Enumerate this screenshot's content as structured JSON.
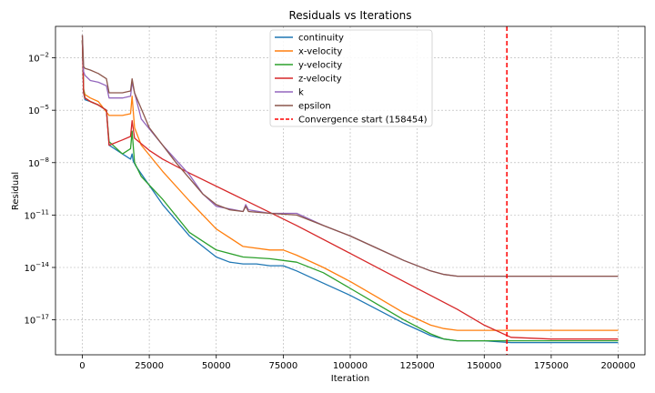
{
  "chart_data": {
    "type": "line",
    "title": "Residuals vs Iterations",
    "xlabel": "Iteration",
    "ylabel": "Residual",
    "xlim": [
      -10000,
      210000
    ],
    "ylog": true,
    "ylim_exp": [
      -19,
      -0.2
    ],
    "grid": true,
    "legend_position": "top-center",
    "x_ticks": [
      0,
      25000,
      50000,
      75000,
      100000,
      125000,
      150000,
      175000,
      200000
    ],
    "x_tick_labels": [
      "0",
      "25000",
      "50000",
      "75000",
      "100000",
      "125000",
      "150000",
      "175000",
      "200000"
    ],
    "y_ticks_exp": [
      -17,
      -14,
      -11,
      -8,
      -5,
      -2
    ],
    "y_tick_labels": [
      "10",
      "10",
      "10",
      "10",
      "10",
      "10"
    ],
    "y_tick_superscripts": [
      "−17",
      "−14",
      "−11",
      "−8",
      "−5",
      "−2"
    ],
    "series": [
      {
        "name": "continuity",
        "color": "#1f77b4",
        "x": [
          0,
          500,
          1000,
          3000,
          6000,
          9000,
          10000,
          15000,
          18000,
          18600,
          19000,
          20000,
          25000,
          30000,
          40000,
          50000,
          55000,
          60000,
          65000,
          70000,
          75000,
          80000,
          90000,
          100000,
          110000,
          120000,
          130000,
          135000,
          140000,
          150000,
          160000,
          175000,
          200000
        ],
        "y_exp": [
          -1.0,
          -4.0,
          -4.4,
          -4.5,
          -4.7,
          -5.0,
          -7.0,
          -7.5,
          -7.8,
          -7.5,
          -7.9,
          -8.2,
          -9.3,
          -10.4,
          -12.2,
          -13.4,
          -13.7,
          -13.8,
          -13.8,
          -13.9,
          -13.9,
          -14.2,
          -14.9,
          -15.6,
          -16.4,
          -17.2,
          -17.9,
          -18.1,
          -18.2,
          -18.2,
          -18.3,
          -18.3,
          -18.3
        ]
      },
      {
        "name": "x-velocity",
        "color": "#ff7f0e",
        "x": [
          0,
          500,
          1000,
          3000,
          6000,
          10000,
          15000,
          18000,
          18600,
          19500,
          22000,
          30000,
          40000,
          50000,
          60000,
          70000,
          75000,
          80000,
          90000,
          100000,
          110000,
          120000,
          130000,
          135000,
          140000,
          150000,
          160000,
          200000
        ],
        "y_exp": [
          -1.0,
          -3.8,
          -4.1,
          -4.3,
          -4.5,
          -5.3,
          -5.3,
          -5.2,
          -4.2,
          -6.0,
          -7.0,
          -8.5,
          -10.2,
          -11.8,
          -12.8,
          -13.0,
          -13.0,
          -13.3,
          -14.0,
          -14.8,
          -15.7,
          -16.6,
          -17.3,
          -17.5,
          -17.6,
          -17.6,
          -17.6,
          -17.6
        ]
      },
      {
        "name": "y-velocity",
        "color": "#2ca02c",
        "x": [
          0,
          500,
          1000,
          3000,
          6000,
          9000,
          10000,
          15000,
          18000,
          18600,
          19500,
          22000,
          30000,
          40000,
          50000,
          60000,
          70000,
          75000,
          80000,
          90000,
          100000,
          110000,
          120000,
          130000,
          135000,
          140000,
          150000,
          160000,
          200000
        ],
        "y_exp": [
          -1.0,
          -3.8,
          -4.3,
          -4.5,
          -4.7,
          -5.0,
          -6.8,
          -7.5,
          -7.2,
          -6.2,
          -8.0,
          -8.8,
          -10.1,
          -12.0,
          -13.0,
          -13.4,
          -13.5,
          -13.6,
          -13.7,
          -14.3,
          -15.2,
          -16.1,
          -17.0,
          -17.8,
          -18.1,
          -18.2,
          -18.2,
          -18.2,
          -18.2
        ]
      },
      {
        "name": "z-velocity",
        "color": "#d62728",
        "x": [
          0,
          500,
          1000,
          3000,
          6000,
          9000,
          10000,
          15000,
          18000,
          18600,
          19500,
          25000,
          30000,
          40000,
          60000,
          80000,
          100000,
          120000,
          140000,
          150000,
          160000,
          175000,
          200000
        ],
        "y_exp": [
          -1.0,
          -4.0,
          -4.3,
          -4.5,
          -4.7,
          -5.0,
          -7.0,
          -6.7,
          -6.5,
          -5.6,
          -6.6,
          -7.3,
          -7.8,
          -8.6,
          -10.1,
          -11.6,
          -13.2,
          -14.8,
          -16.4,
          -17.3,
          -18.0,
          -18.1,
          -18.1
        ]
      },
      {
        "name": "k",
        "color": "#9467bd",
        "x": [
          0,
          500,
          1000,
          3000,
          6000,
          9000,
          10000,
          15000,
          18000,
          18600,
          19500,
          22000,
          30000,
          40000,
          45000,
          50000,
          60000,
          61000,
          62000,
          70000,
          75000,
          80000,
          90000,
          100000,
          110000,
          120000,
          130000,
          135000,
          140000,
          150000,
          175000,
          200000
        ],
        "y_exp": [
          -0.7,
          -2.8,
          -3.0,
          -3.3,
          -3.4,
          -3.6,
          -4.3,
          -4.3,
          -4.2,
          -3.4,
          -4.0,
          -5.5,
          -7.0,
          -8.7,
          -9.8,
          -10.5,
          -10.8,
          -10.4,
          -10.7,
          -10.9,
          -10.9,
          -10.9,
          -11.6,
          -12.2,
          -12.9,
          -13.6,
          -14.2,
          -14.4,
          -14.5,
          -14.5,
          -14.5,
          -14.5
        ]
      },
      {
        "name": "epsilon",
        "color": "#8c564b",
        "x": [
          0,
          500,
          1000,
          3000,
          6000,
          9000,
          10000,
          15000,
          18000,
          18600,
          19500,
          25000,
          35000,
          45000,
          50000,
          55000,
          60000,
          61000,
          62000,
          70000,
          80000,
          90000,
          100000,
          110000,
          120000,
          130000,
          135000,
          140000,
          150000,
          175000,
          200000
        ],
        "y_exp": [
          -0.7,
          -2.5,
          -2.6,
          -2.7,
          -2.9,
          -3.2,
          -4.0,
          -4.0,
          -3.9,
          -3.2,
          -4.0,
          -6.0,
          -8.0,
          -9.8,
          -10.4,
          -10.7,
          -10.8,
          -10.5,
          -10.8,
          -10.9,
          -11.0,
          -11.6,
          -12.2,
          -12.9,
          -13.6,
          -14.2,
          -14.4,
          -14.5,
          -14.5,
          -14.5,
          -14.5
        ]
      }
    ],
    "convergence_line": {
      "name": "Convergence start (158454)",
      "x": 158454,
      "color": "#ff0000"
    }
  }
}
